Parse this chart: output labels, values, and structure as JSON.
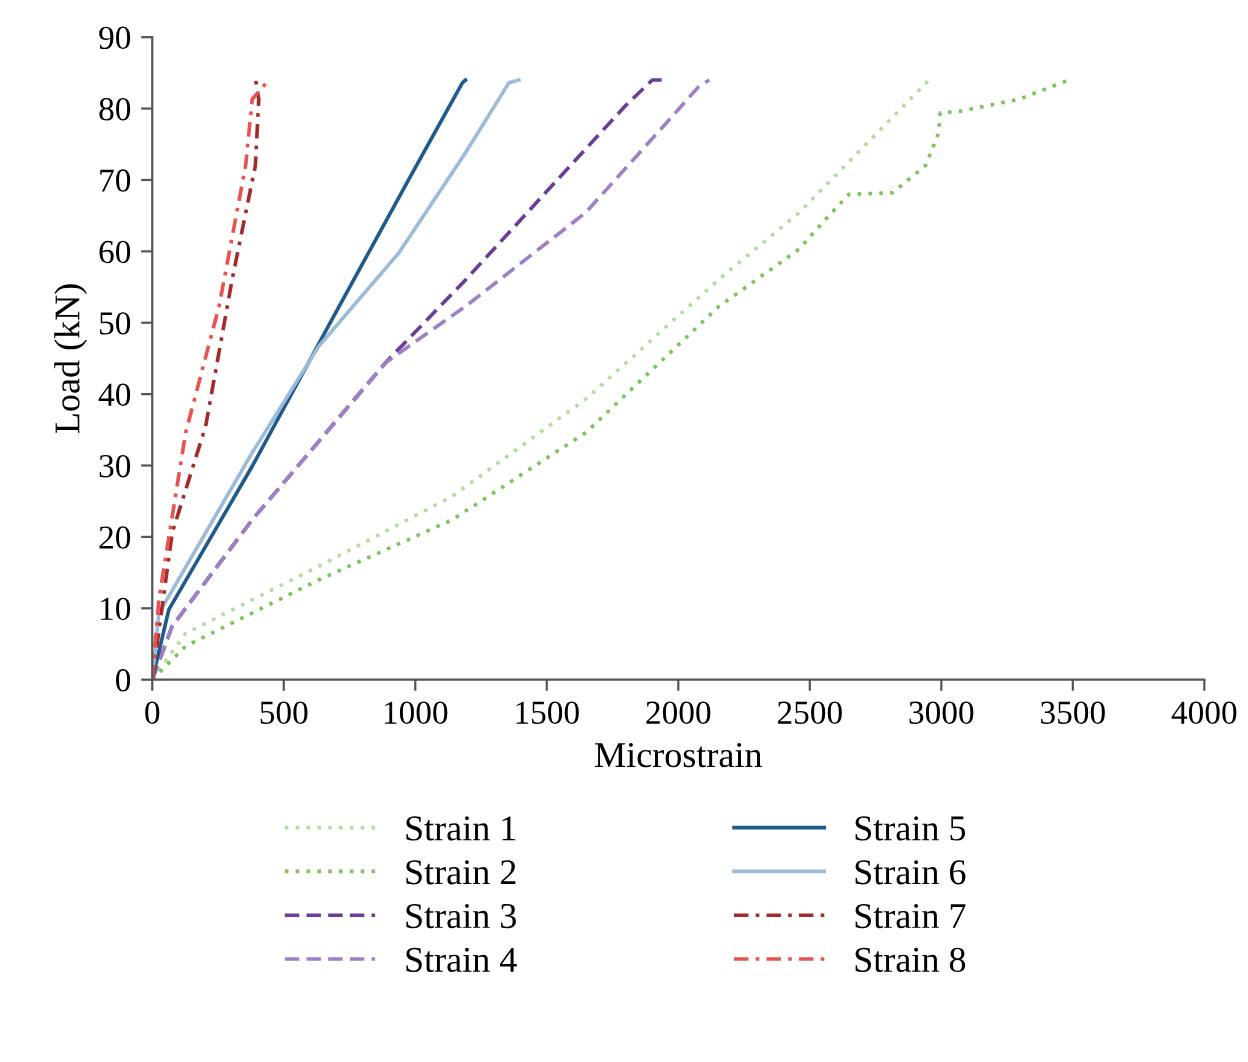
{
  "chart_data": {
    "type": "line",
    "xlabel": "Microstrain",
    "ylabel": "Load (kN)",
    "xlim": [
      0,
      4000
    ],
    "ylim": [
      0,
      90
    ],
    "xticks": [
      0,
      500,
      1000,
      1500,
      2000,
      2500,
      3000,
      3500,
      4000
    ],
    "yticks": [
      0,
      10,
      20,
      30,
      40,
      50,
      60,
      70,
      80,
      90
    ],
    "grid": false,
    "legend": "bottom",
    "marker": "none",
    "series": [
      {
        "name": "Strain 1",
        "color": "#b5dca0",
        "line_style": "dotted",
        "x": [
          0,
          127,
          634,
          1141,
          1648,
          2155,
          2459,
          2953
        ],
        "values": [
          0,
          6.5,
          15.9,
          25.7,
          39.3,
          56.1,
          65.4,
          84
        ]
      },
      {
        "name": "Strain 2",
        "color": "#7cc35a",
        "line_style": "dotted",
        "x": [
          0,
          127,
          634,
          1141,
          1648,
          2155,
          2459,
          2560,
          2649,
          2814,
          2940,
          2990,
          2996,
          3067,
          3295,
          3485
        ],
        "values": [
          0,
          4.7,
          14,
          22.4,
          34.6,
          52.3,
          60.3,
          64.5,
          68,
          68.2,
          72,
          76.6,
          79.4,
          79.6,
          81.3,
          84
        ]
      },
      {
        "name": "Strain 3",
        "color": "#6a3d9a",
        "line_style": "dashed",
        "x": [
          0,
          76,
          380,
          887,
          1191,
          1495,
          1799,
          1901,
          1940
        ],
        "values": [
          0,
          7.5,
          22.4,
          44.4,
          56,
          68.2,
          80.4,
          84,
          84
        ]
      },
      {
        "name": "Strain 4",
        "color": "#9e80c8",
        "line_style": "dashed",
        "x": [
          0,
          76,
          380,
          887,
          1191,
          1647,
          1977,
          2078,
          2118
        ],
        "values": [
          0,
          7.5,
          22.4,
          44.4,
          52.3,
          65.4,
          78.9,
          83.1,
          84
        ]
      },
      {
        "name": "Strain 5",
        "color": "#1f5a8a",
        "line_style": "solid",
        "x": [
          0,
          63,
          380,
          684,
          989,
          1179,
          1191
        ],
        "values": [
          0,
          9.8,
          29.9,
          50.5,
          71,
          83.6,
          84
        ]
      },
      {
        "name": "Strain 6",
        "color": "#9bbbd9",
        "line_style": "solid",
        "x": [
          0,
          25,
          380,
          633,
          938,
          1191,
          1356,
          1394
        ],
        "values": [
          0,
          9.3,
          31.8,
          46.7,
          59.8,
          73.8,
          83.6,
          84
        ]
      },
      {
        "name": "Strain 7",
        "color": "#a52a2a",
        "line_style": "dashdot",
        "x": [
          0,
          76,
          203,
          304,
          392,
          405,
          393
        ],
        "values": [
          0,
          20.6,
          35.5,
          56.1,
          72,
          81.3,
          84
        ]
      },
      {
        "name": "Strain 8",
        "color": "#e8524f",
        "line_style": "dashdot",
        "x": [
          0,
          25,
          127,
          254,
          355,
          380,
          443
        ],
        "values": [
          0,
          11.2,
          34.6,
          52.3,
          72,
          81.3,
          84
        ]
      }
    ]
  }
}
